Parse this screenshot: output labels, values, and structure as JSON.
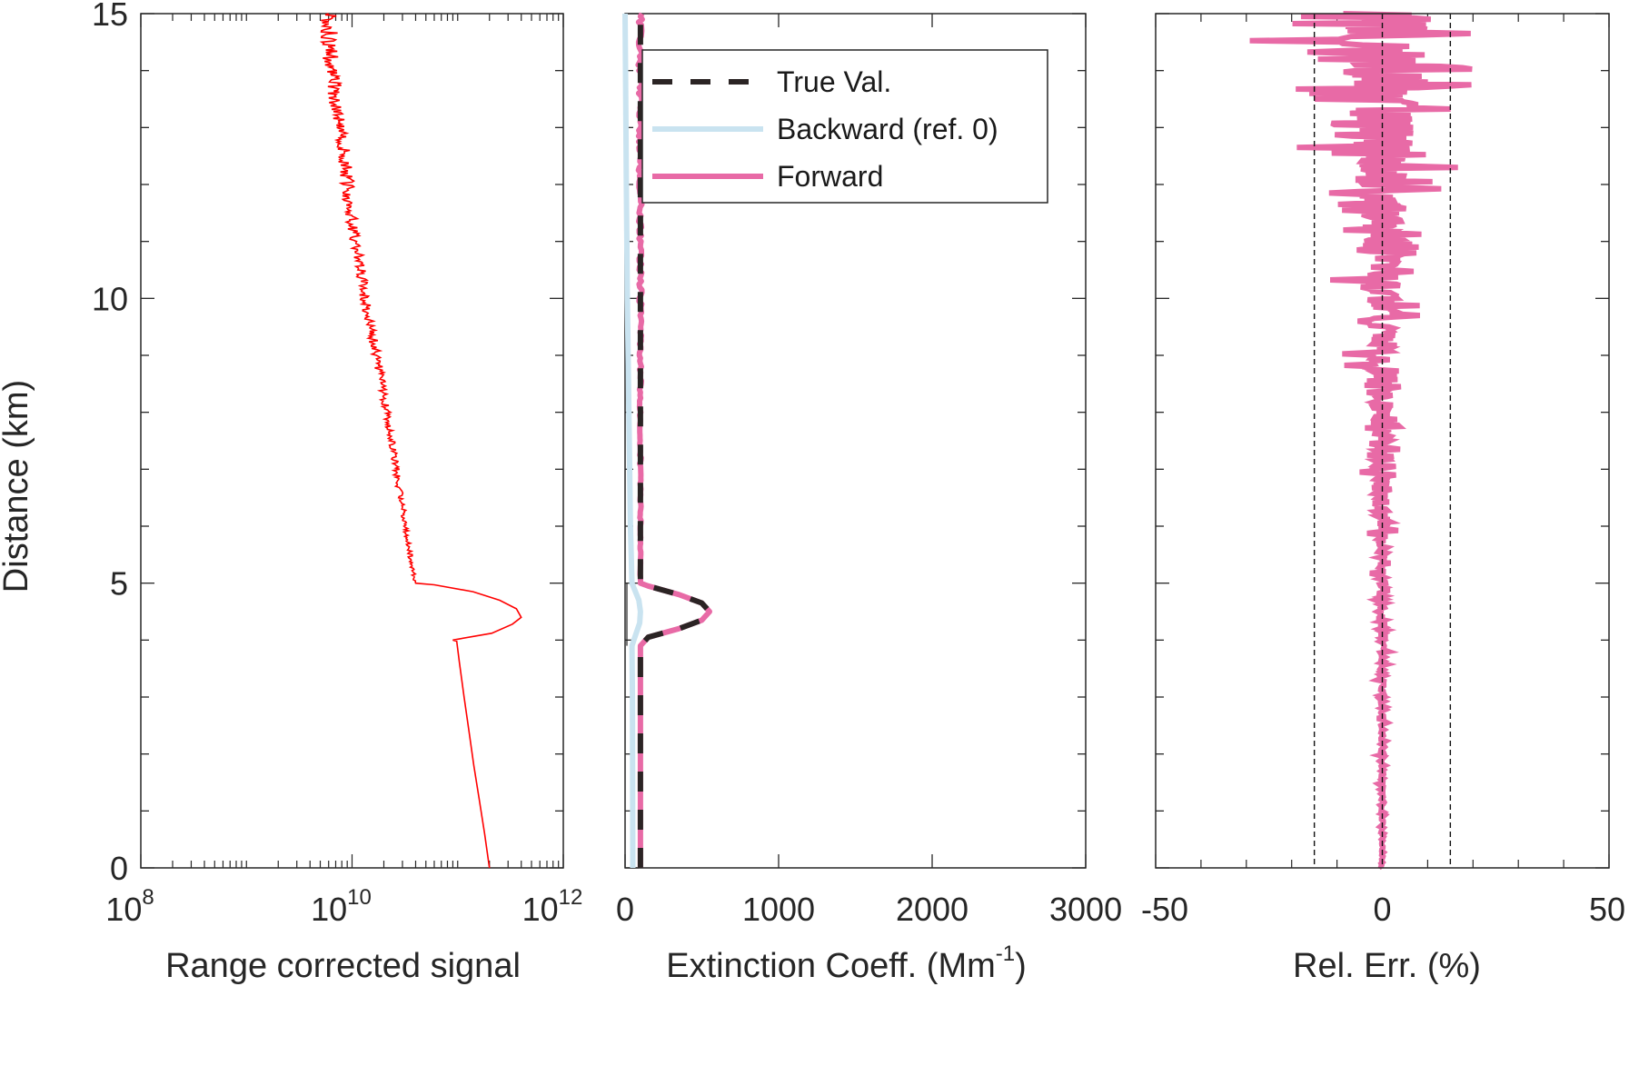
{
  "colors": {
    "signal": "#ff0000",
    "true_val": "#2b2424",
    "backward": "#c9e3f0",
    "forward": "#e86aa6",
    "axes": "#262626"
  },
  "y_axis": {
    "label": "Distance (km)",
    "ylim": [
      0,
      15
    ],
    "major_ticks": [
      0,
      5,
      10,
      15
    ],
    "tick_labels": [
      "0",
      "5",
      "10",
      "15"
    ]
  },
  "chart_data": [
    {
      "type": "line",
      "xscale": "log",
      "xlim": [
        100000000,
        1000000000000
      ],
      "ylim": [
        0,
        15
      ],
      "xlabel": "Range corrected signal",
      "x_ticks": [
        {
          "base": "10",
          "exp": "8"
        },
        {
          "base": "10",
          "exp": "10"
        },
        {
          "base": "10",
          "exp": "12"
        }
      ],
      "series": [
        {
          "color": "#ff0000",
          "points": [
            [
              200000000000,
              0
            ],
            [
              180000000000,
              0.6
            ],
            [
              160000000000,
              1.2
            ],
            [
              142000000000,
              1.8
            ],
            [
              128000000000,
              2.4
            ],
            [
              115000000000,
              3.0
            ],
            [
              104000000000,
              3.6
            ],
            [
              98000000000,
              3.98
            ],
            [
              90000000000,
              4.0
            ],
            [
              210000000000,
              4.12
            ],
            [
              330000000000,
              4.28
            ],
            [
              400000000000,
              4.4
            ],
            [
              360000000000,
              4.55
            ],
            [
              250000000000,
              4.7
            ],
            [
              140000000000,
              4.85
            ],
            [
              60000000000,
              4.97
            ],
            [
              40000000000,
              5.0
            ],
            [
              37000000000,
              5.3
            ],
            [
              33000000000,
              5.8
            ],
            [
              31000000000,
              6.2
            ],
            [
              27000000000,
              6.8
            ],
            [
              25000000000,
              7.3
            ],
            [
              22000000000,
              7.9
            ],
            [
              19000000000,
              8.5
            ],
            [
              17000000000,
              9.0
            ],
            [
              15000000000,
              9.5
            ],
            [
              13000000000,
              10.1
            ],
            [
              11500000000,
              10.7
            ],
            [
              10000000000,
              11.3
            ],
            [
              9200000000,
              11.9
            ],
            [
              8500000000,
              12.5
            ],
            [
              7600000000,
              13.1
            ],
            [
              6800000000,
              13.7
            ],
            [
              6200000000,
              14.3
            ],
            [
              6000000000,
              15
            ]
          ]
        }
      ]
    },
    {
      "type": "line",
      "xlim": [
        0,
        3000
      ],
      "ylim": [
        0,
        15
      ],
      "xlabel": "Extinction Coeff. (Mm",
      "xlabel_sup": "-1",
      "xlabel_suffix": ")",
      "x_ticks": [
        "0",
        "1000",
        "2000",
        "3000"
      ],
      "legend": {
        "position": "top-right",
        "entries": [
          "True Val.",
          "Backward (ref. 0)",
          "Forward"
        ]
      },
      "series": [
        {
          "name": "True Val.",
          "color": "#2b2424",
          "points": [
            [
              100,
              0
            ],
            [
              100,
              3.9
            ],
            [
              150,
              4.05
            ],
            [
              350,
              4.2
            ],
            [
              500,
              4.35
            ],
            [
              550,
              4.5
            ],
            [
              500,
              4.65
            ],
            [
              350,
              4.8
            ],
            [
              150,
              4.95
            ],
            [
              100,
              5.0
            ],
            [
              100,
              15
            ]
          ]
        },
        {
          "name": "Backward (ref. 0)",
          "color": "#c9e3f0",
          "points": [
            [
              50,
              0
            ],
            [
              48,
              3.0
            ],
            [
              45,
              3.9
            ],
            [
              70,
              4.1
            ],
            [
              95,
              4.3
            ],
            [
              100,
              4.5
            ],
            [
              90,
              4.7
            ],
            [
              60,
              4.9
            ],
            [
              45,
              5.0
            ],
            [
              35,
              6.0
            ],
            [
              25,
              8.0
            ],
            [
              15,
              10.0
            ],
            [
              8,
              12.0
            ],
            [
              3,
              14.0
            ],
            [
              0,
              15
            ]
          ]
        },
        {
          "name": "Forward",
          "color": "#e86aa6",
          "points": [
            [
              100,
              0
            ],
            [
              100,
              3.9
            ],
            [
              150,
              4.05
            ],
            [
              350,
              4.2
            ],
            [
              500,
              4.35
            ],
            [
              550,
              4.5
            ],
            [
              500,
              4.65
            ],
            [
              350,
              4.8
            ],
            [
              150,
              4.95
            ],
            [
              100,
              5.0
            ],
            [
              100,
              15
            ]
          ]
        }
      ]
    },
    {
      "type": "line",
      "xlim": [
        -50,
        50
      ],
      "ylim": [
        0,
        15
      ],
      "xlabel": "Rel. Err. (%)",
      "x_ticks": [
        "-50",
        "0",
        "50"
      ],
      "reference_lines_x": [
        -15,
        0,
        15
      ],
      "series": [
        {
          "color": "#e86aa6",
          "envelope": [
            [
              0,
              0.5
            ],
            [
              1,
              0.8
            ],
            [
              2,
              1.0
            ],
            [
              3,
              1.3
            ],
            [
              4,
              1.6
            ],
            [
              5,
              2.5
            ],
            [
              6,
              4.0
            ],
            [
              7,
              5.5
            ],
            [
              8,
              7.0
            ],
            [
              9,
              9.0
            ],
            [
              10,
              11.0
            ],
            [
              11,
              14.0
            ],
            [
              12,
              18.0
            ],
            [
              13,
              24.0
            ],
            [
              14,
              32.0
            ],
            [
              15,
              36.0
            ]
          ]
        }
      ]
    }
  ]
}
